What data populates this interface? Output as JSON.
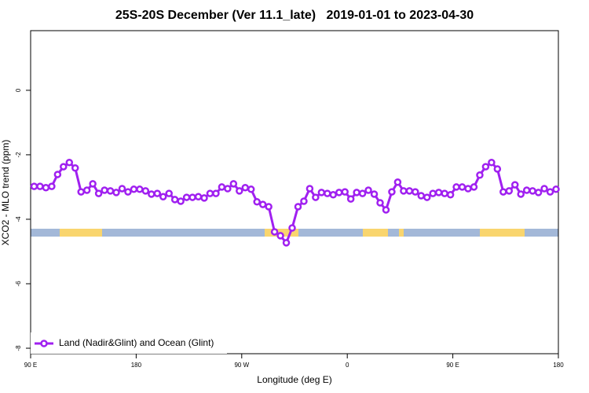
{
  "chart_data": {
    "type": "line",
    "title": "25S-20S December (Ver 11.1_late)   2019-01-01 to 2023-04-30",
    "xlabel": "Longitude (deg E)",
    "ylabel": "XCO2 - MLO trend (ppm)",
    "xlim": [
      90,
      540
    ],
    "ylim": [
      -8.17,
      1.85
    ],
    "xticks": [
      {
        "value": 90,
        "label": "90 E"
      },
      180,
      {
        "value": 270,
        "label": "90 W"
      },
      {
        "value": 360,
        "label": "0"
      },
      {
        "value": 450,
        "label": "90 E"
      },
      {
        "value": 540,
        "label": "180"
      }
    ],
    "yticks": [
      0,
      -2,
      -4,
      -6,
      -8
    ],
    "legend": "bottom-left",
    "x": [
      93,
      98,
      103,
      108,
      113,
      118,
      123,
      128,
      133,
      138,
      143,
      148,
      153,
      158,
      163,
      168,
      173,
      178,
      183,
      188,
      193,
      198,
      203,
      208,
      213,
      218,
      223,
      228,
      233,
      238,
      243,
      248,
      253,
      258,
      263,
      268,
      273,
      278,
      283,
      288,
      293,
      298,
      303,
      308,
      313,
      318,
      323,
      328,
      333,
      338,
      343,
      348,
      353,
      358,
      363,
      368,
      373,
      378,
      383,
      388,
      393,
      398,
      403,
      408,
      413,
      418,
      423,
      428,
      433,
      438,
      443,
      448,
      453,
      458,
      463,
      468,
      473,
      478,
      483,
      488,
      493,
      498,
      503,
      508,
      513,
      518,
      523,
      528,
      533,
      538
    ],
    "series": [
      {
        "name": "Land (Nadir&Glint) and Ocean (Glint)",
        "color": "#a020f0",
        "values": [
          -2.98,
          -2.98,
          -3.02,
          -2.98,
          -2.61,
          -2.37,
          -2.24,
          -2.41,
          -3.15,
          -3.1,
          -2.9,
          -3.2,
          -3.1,
          -3.12,
          -3.17,
          -3.05,
          -3.15,
          -3.07,
          -3.07,
          -3.12,
          -3.22,
          -3.2,
          -3.3,
          -3.2,
          -3.39,
          -3.44,
          -3.32,
          -3.32,
          -3.3,
          -3.34,
          -3.2,
          -3.2,
          -3.0,
          -3.05,
          -2.9,
          -3.12,
          -3.02,
          -3.07,
          -3.46,
          -3.54,
          -3.61,
          -4.39,
          -4.51,
          -4.73,
          -4.27,
          -3.61,
          -3.44,
          -3.05,
          -3.32,
          -3.17,
          -3.2,
          -3.24,
          -3.17,
          -3.15,
          -3.37,
          -3.17,
          -3.2,
          -3.1,
          -3.22,
          -3.49,
          -3.71,
          -3.15,
          -2.85,
          -3.12,
          -3.12,
          -3.15,
          -3.27,
          -3.32,
          -3.2,
          -3.17,
          -3.2,
          -3.24,
          -3.0,
          -3.0,
          -3.05,
          -3.0,
          -2.63,
          -2.37,
          -2.24,
          -2.44,
          -3.15,
          -3.12,
          -2.93,
          -3.22,
          -3.1,
          -3.12,
          -3.17,
          -3.05,
          -3.15,
          -3.07
        ]
      }
    ]
  }
}
